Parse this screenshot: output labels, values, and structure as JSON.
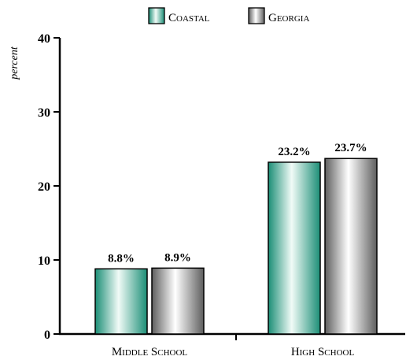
{
  "chart_data": {
    "type": "bar",
    "title": "",
    "xlabel": "",
    "ylabel": "percent",
    "ylim": [
      0,
      40
    ],
    "yticks": [
      0,
      10,
      20,
      30,
      40
    ],
    "categories": [
      "Middle School",
      "High School"
    ],
    "series": [
      {
        "name": "Coastal",
        "values": [
          8.8,
          23.2
        ],
        "labels": [
          "8.8%",
          "23.2%"
        ]
      },
      {
        "name": "Georgia",
        "values": [
          8.9,
          23.7
        ],
        "labels": [
          "8.9%",
          "23.7%"
        ]
      }
    ],
    "legend_position": "top",
    "grid": false,
    "colors": {
      "coastal_edge": "#1b8e76",
      "coastal_light": "#f1fbf7",
      "georgia_edge": "#5e5e5e",
      "georgia_light": "#ffffff",
      "axis": "#000000"
    }
  }
}
